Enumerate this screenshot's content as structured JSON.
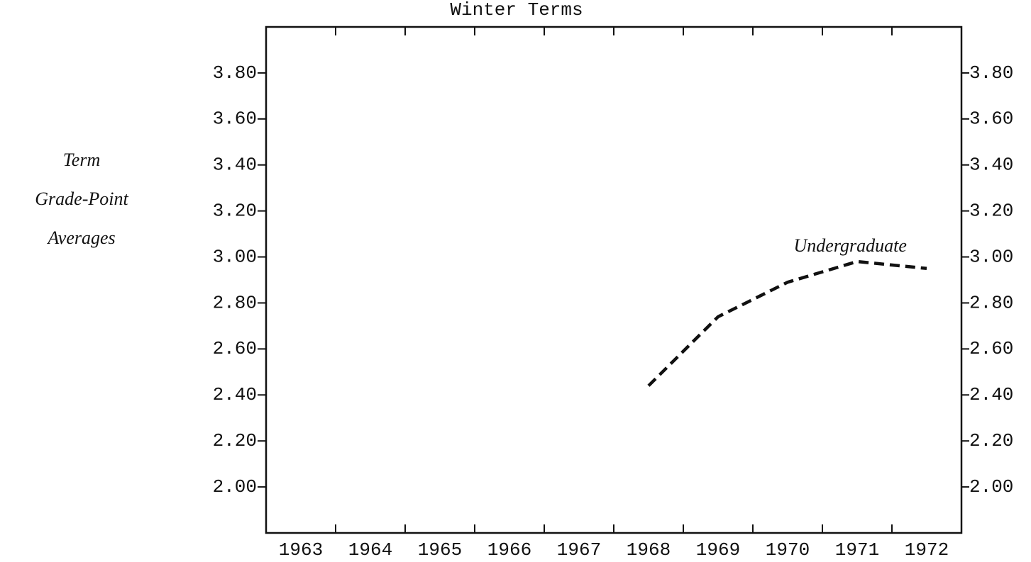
{
  "chart_data": {
    "type": "line",
    "title": "Winter Terms",
    "y_label": [
      "Term",
      "Grade-Point",
      "Averages"
    ],
    "categories": [
      "1963",
      "1964",
      "1965",
      "1966",
      "1967",
      "1968",
      "1969",
      "1970",
      "1971",
      "1972"
    ],
    "series": [
      {
        "name": "Undergraduate",
        "color": "#111111",
        "values": [
          null,
          null,
          null,
          null,
          null,
          2.44,
          2.74,
          2.89,
          2.98,
          2.95
        ]
      }
    ],
    "ylim": [
      1.8,
      4.0
    ],
    "yticks": [
      {
        "value": 2.0,
        "label": "2.00"
      },
      {
        "value": 2.2,
        "label": "2.20"
      },
      {
        "value": 2.4,
        "label": "2.40"
      },
      {
        "value": 2.6,
        "label": "2.60"
      },
      {
        "value": 2.8,
        "label": "2.80"
      },
      {
        "value": 3.0,
        "label": "3.00"
      },
      {
        "value": 3.2,
        "label": "3.20"
      },
      {
        "value": 3.4,
        "label": "3.40"
      },
      {
        "value": 3.6,
        "label": "3.60"
      },
      {
        "value": 3.8,
        "label": "3.80"
      }
    ],
    "y2lim": [
      1.8,
      4.0
    ],
    "y2ticks": [
      {
        "value": 2.0,
        "label": "2.00"
      },
      {
        "value": 2.2,
        "label": "2.20"
      },
      {
        "value": 2.4,
        "label": "2.40"
      },
      {
        "value": 2.6,
        "label": "2.60"
      },
      {
        "value": 2.8,
        "label": "2.80"
      },
      {
        "value": 3.0,
        "label": "3.00"
      },
      {
        "value": 3.2,
        "label": "3.20"
      },
      {
        "value": 3.4,
        "label": "3.40"
      },
      {
        "value": 3.6,
        "label": "3.60"
      },
      {
        "value": 3.8,
        "label": "3.80"
      }
    ],
    "dashed": true,
    "grid": false
  }
}
